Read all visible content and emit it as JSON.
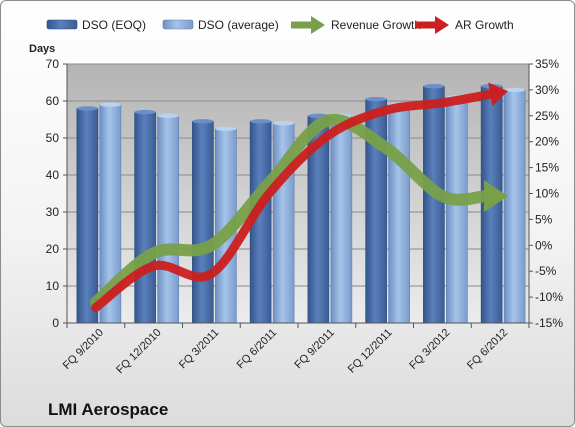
{
  "brand": "LMI Aerospace",
  "chart_data": {
    "type": "bar",
    "title": "",
    "categories": [
      "FQ 9/2010",
      "FQ 12/2010",
      "FQ 3/2011",
      "FQ 6/2011",
      "FQ 9/2011",
      "FQ 12/2011",
      "FQ 3/2012",
      "FQ 6/2012"
    ],
    "y_left": {
      "label": "Days",
      "range": [
        0,
        70
      ],
      "ticks": [
        "0",
        "10",
        "20",
        "30",
        "40",
        "50",
        "60",
        "70"
      ]
    },
    "y_right": {
      "label": "",
      "range": [
        -15,
        35
      ],
      "ticks": [
        "-15%",
        "-10%",
        "-5%",
        "0%",
        "5%",
        "10%",
        "15%",
        "20%",
        "25%",
        "30%",
        "35%"
      ]
    },
    "series": [
      {
        "name": "DSO (EOQ)",
        "kind": "bar",
        "axis": "left",
        "color": "#4a6ea8",
        "values": [
          58,
          57,
          54.5,
          54.5,
          56,
          60.5,
          64,
          64
        ]
      },
      {
        "name": "DSO (average)",
        "kind": "bar",
        "axis": "left",
        "color": "#8eb0dc",
        "values": [
          59,
          56,
          52.5,
          54,
          56,
          59,
          61,
          63
        ]
      },
      {
        "name": "Revenue Growth",
        "kind": "line-arrow",
        "axis": "right",
        "color": "#78a04a",
        "values": [
          -11,
          -1.5,
          0,
          12,
          24,
          19,
          9.5,
          9.5
        ]
      },
      {
        "name": "AR Growth",
        "kind": "line-arrow",
        "axis": "right",
        "color": "#cc1f1f",
        "values": [
          -12,
          -4,
          -5.5,
          10,
          21,
          26,
          27.5,
          29.5
        ]
      }
    ],
    "grid": true,
    "legend_position": "top"
  }
}
